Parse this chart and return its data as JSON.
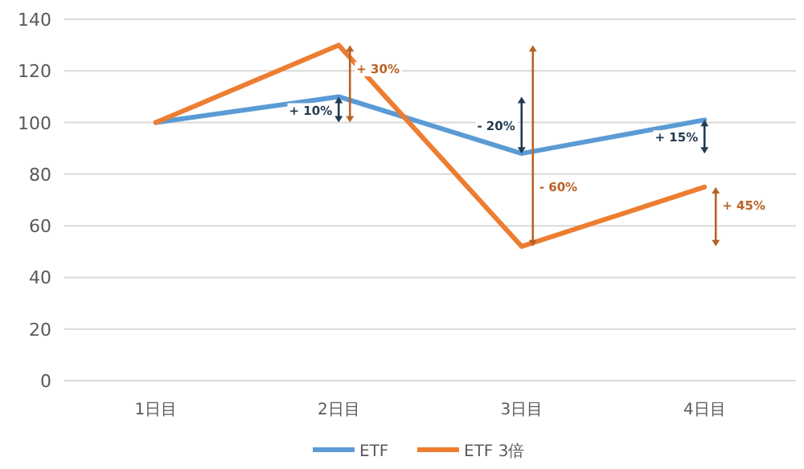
{
  "chart_data": {
    "type": "line",
    "categories": [
      "1日目",
      "2日目",
      "3日目",
      "4日目"
    ],
    "series": [
      {
        "name": "ETF",
        "color": "#5b9bd5",
        "values": [
          100,
          110,
          88,
          101
        ]
      },
      {
        "name": "ETF 3倍",
        "color": "#ed7d31",
        "values": [
          100,
          130,
          52,
          75
        ]
      }
    ],
    "annotations": [
      "+ 10%",
      "+ 30%",
      "- 20%",
      "- 60%",
      "+ 15%",
      "+ 45%"
    ],
    "ylim": [
      0,
      140
    ],
    "yticks": [
      0,
      20,
      40,
      60,
      80,
      100,
      120,
      140
    ],
    "grid": "y",
    "legend": "bottom",
    "marker": "none",
    "line_style": "solid"
  }
}
